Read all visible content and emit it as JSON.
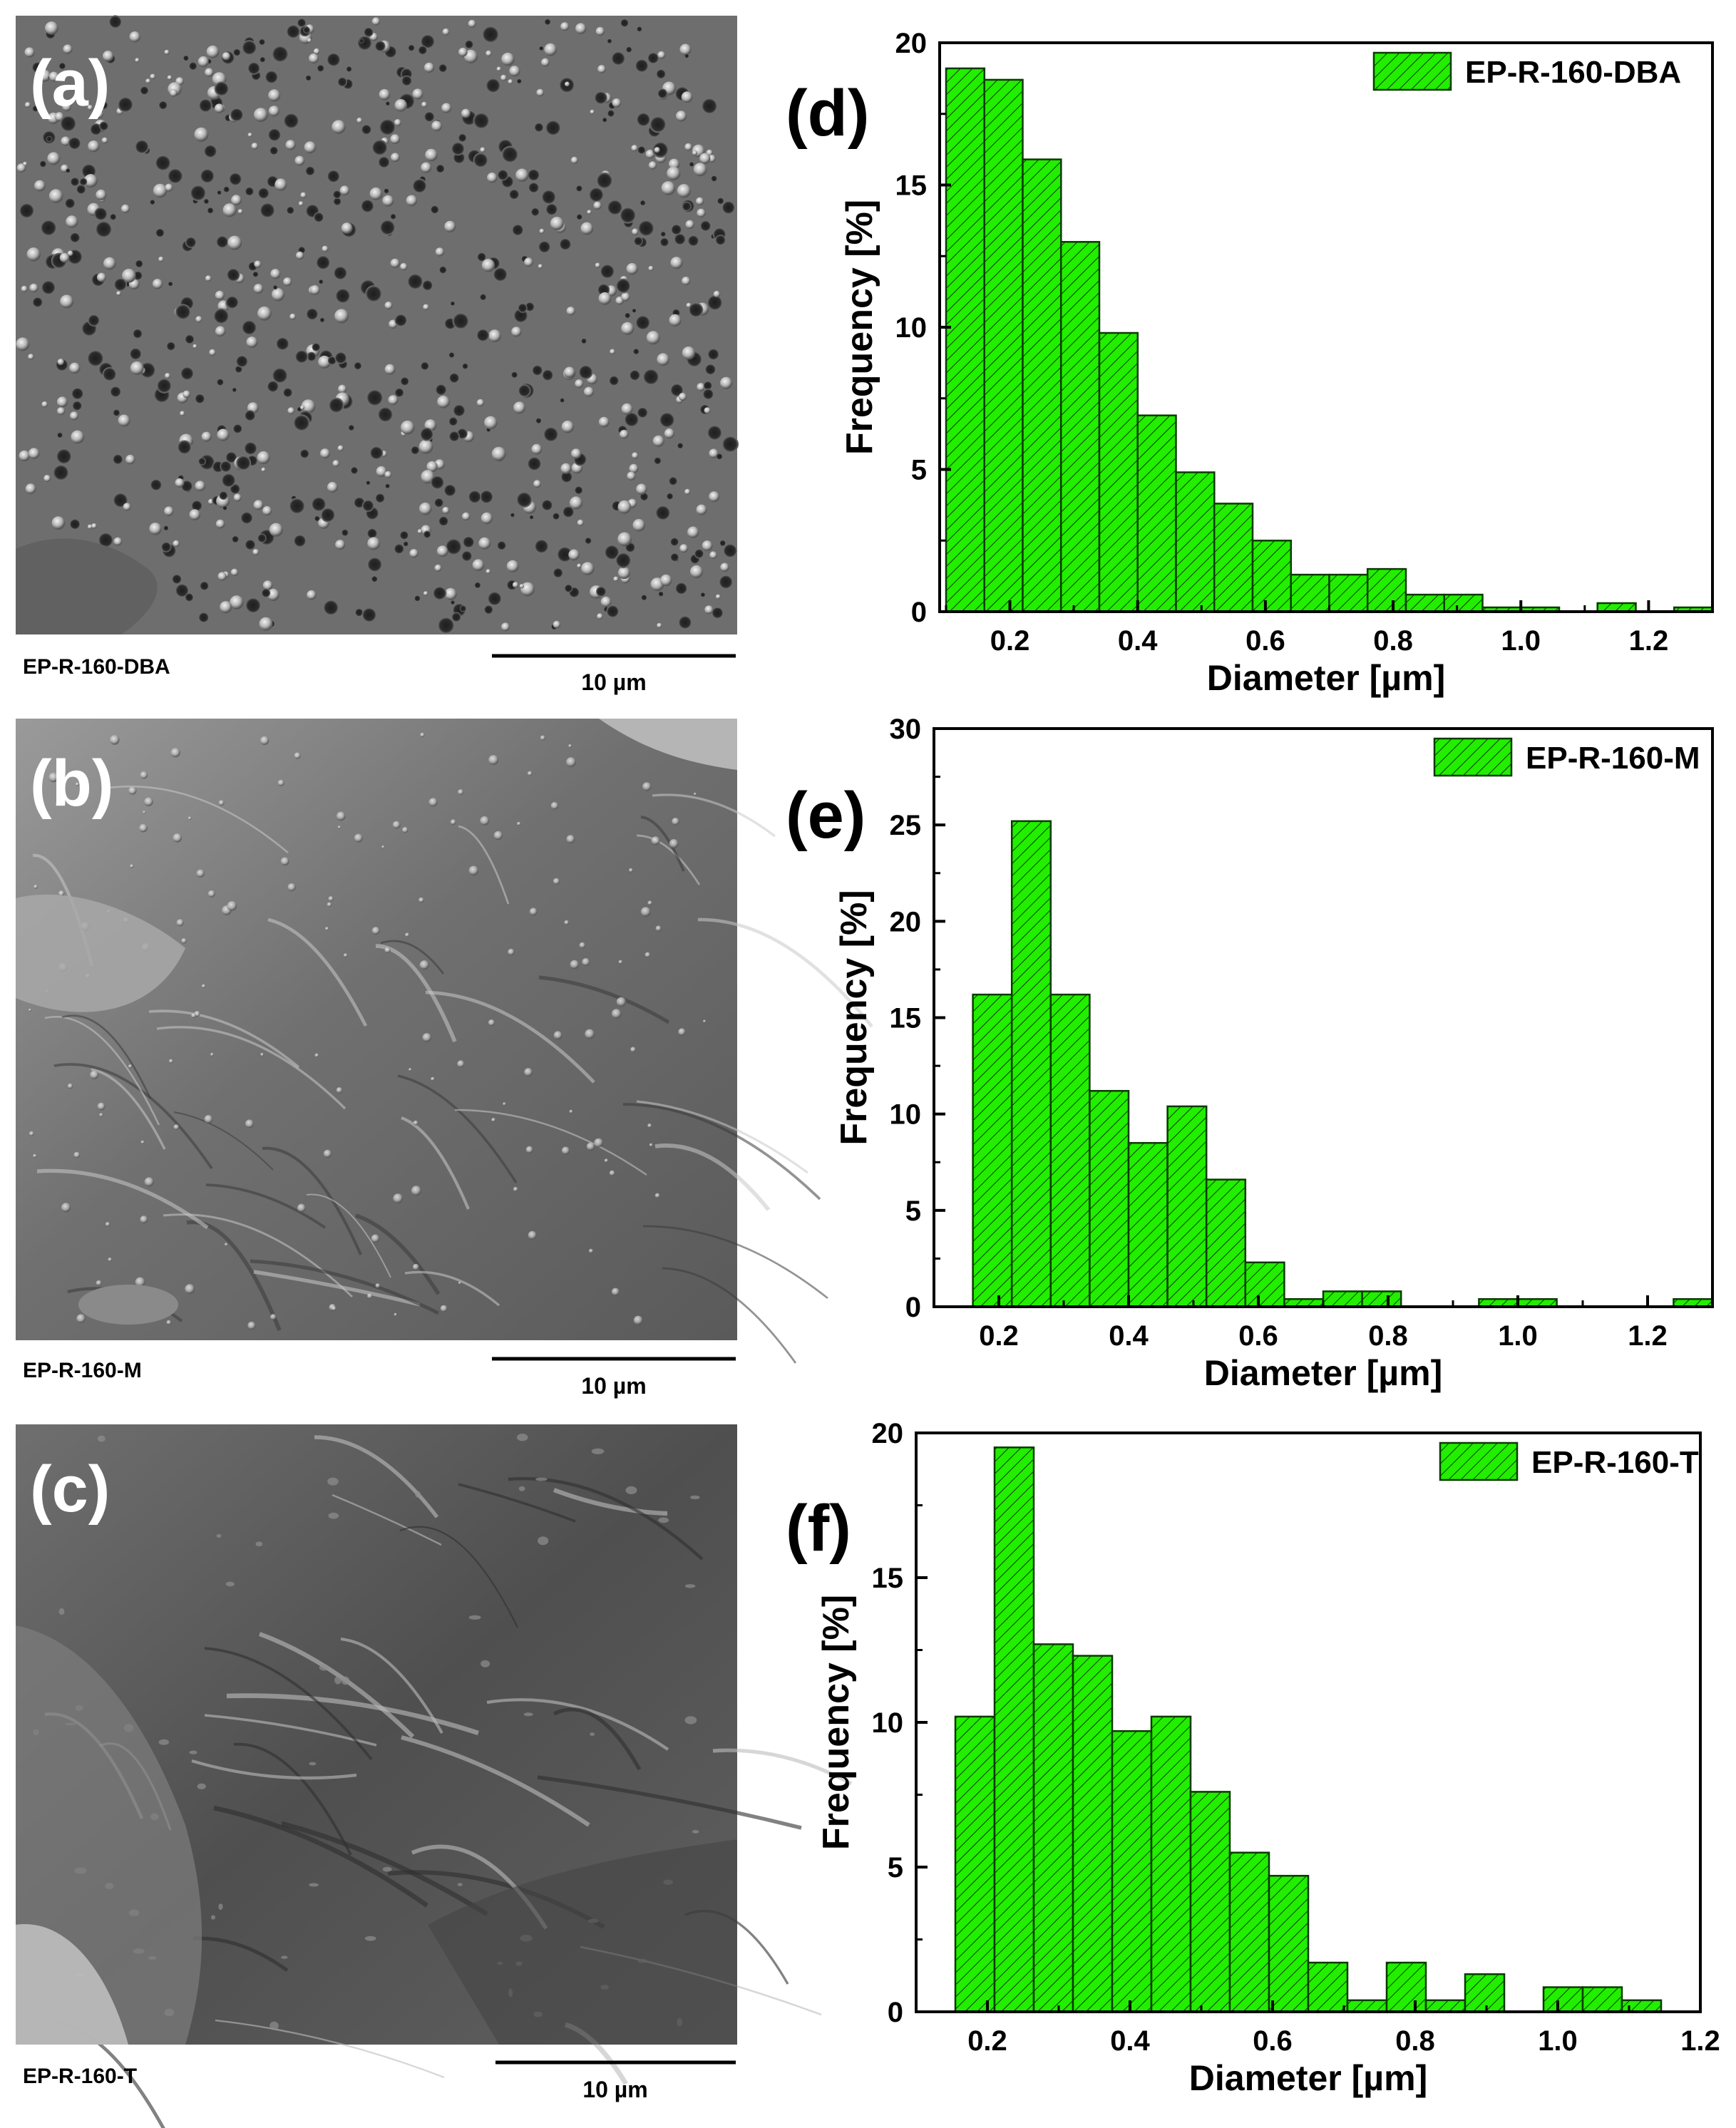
{
  "panels_left": [
    {
      "tag": "(a)",
      "caption": "EP-R-160-DBA",
      "scalebar": "10 µm"
    },
    {
      "tag": "(b)",
      "caption": "EP-R-160-M",
      "scalebar": "10 µm"
    },
    {
      "tag": "(c)",
      "caption": "EP-R-160-T",
      "scalebar": "10 µm"
    }
  ],
  "colors": {
    "bar_fill": "#22ee00",
    "bar_edge": "#0a3a00",
    "axis": "#000000"
  },
  "chart_data": [
    {
      "type": "bar",
      "panel": "(d)",
      "legend": "EP-R-160-DBA",
      "legend_position": "top-right",
      "xlabel": "Diameter [µm]",
      "ylabel": "Frequency [%]",
      "xlim": [
        0.09,
        1.3
      ],
      "ylim": [
        0,
        20
      ],
      "xticks": [
        0.2,
        0.4,
        0.6,
        0.8,
        1.0,
        1.2
      ],
      "xtick_labels": [
        "0.2",
        "0.4",
        "0.6",
        "0.8",
        "1.0",
        "1.2"
      ],
      "yticks": [
        0,
        5,
        10,
        15,
        20
      ],
      "ytick_labels": [
        "0",
        "5",
        "10",
        "15",
        "20"
      ],
      "bin_width": 0.06,
      "bin_start": [
        0.1,
        0.16,
        0.22,
        0.28,
        0.34,
        0.4,
        0.46,
        0.52,
        0.58,
        0.64,
        0.7,
        0.76,
        0.82,
        0.88,
        0.94,
        1.0,
        1.06,
        1.12,
        1.18,
        1.24
      ],
      "values": [
        19.1,
        18.7,
        15.9,
        13.0,
        9.8,
        6.9,
        4.9,
        3.8,
        2.5,
        1.3,
        1.3,
        1.5,
        0.6,
        0.6,
        0.15,
        0.15,
        0.0,
        0.3,
        0.0,
        0.15
      ],
      "grid": false
    },
    {
      "type": "bar",
      "panel": "(e)",
      "legend": "EP-R-160-M",
      "legend_position": "top-right",
      "xlabel": "Diameter [µm]",
      "ylabel": "Frequency [%]",
      "xlim": [
        0.1,
        1.3
      ],
      "ylim": [
        0,
        30
      ],
      "xticks": [
        0.2,
        0.4,
        0.6,
        0.8,
        1.0,
        1.2
      ],
      "xtick_labels": [
        "0.2",
        "0.4",
        "0.6",
        "0.8",
        "1.0",
        "1.2"
      ],
      "yticks": [
        0,
        5,
        10,
        15,
        20,
        25,
        30
      ],
      "ytick_labels": [
        "0",
        "5",
        "10",
        "15",
        "20",
        "25",
        "30"
      ],
      "bin_width": 0.06,
      "bin_start": [
        0.16,
        0.22,
        0.28,
        0.34,
        0.4,
        0.46,
        0.52,
        0.58,
        0.64,
        0.7,
        0.76,
        0.82,
        0.88,
        0.94,
        1.0,
        1.06,
        1.12,
        1.18,
        1.24
      ],
      "values": [
        16.2,
        25.2,
        16.2,
        11.2,
        8.5,
        10.4,
        6.6,
        2.3,
        0.4,
        0.8,
        0.8,
        0.0,
        0.0,
        0.4,
        0.4,
        0.0,
        0.0,
        0.0,
        0.4
      ],
      "grid": false
    },
    {
      "type": "bar",
      "panel": "(f)",
      "legend": "EP-R-160-T",
      "legend_position": "top-right",
      "xlabel": "Diameter [µm]",
      "ylabel": "Frequency [%]",
      "xlim": [
        0.1,
        1.2
      ],
      "ylim": [
        0,
        20
      ],
      "xticks": [
        0.2,
        0.4,
        0.6,
        0.8,
        1.0,
        1.2
      ],
      "xtick_labels": [
        "0.2",
        "0.4",
        "0.6",
        "0.8",
        "1.0",
        "1.2"
      ],
      "yticks": [
        0,
        5,
        10,
        15,
        20
      ],
      "ytick_labels": [
        "0",
        "5",
        "10",
        "15",
        "20"
      ],
      "bin_width": 0.055,
      "bin_start": [
        0.155,
        0.21,
        0.265,
        0.32,
        0.375,
        0.43,
        0.485,
        0.54,
        0.595,
        0.65,
        0.705,
        0.76,
        0.815,
        0.87,
        0.925,
        0.98,
        1.035,
        1.09
      ],
      "values": [
        10.2,
        19.5,
        12.7,
        12.3,
        9.7,
        10.2,
        7.6,
        5.5,
        4.7,
        1.7,
        0.4,
        1.7,
        0.4,
        1.3,
        0.0,
        0.85,
        0.85,
        0.4
      ],
      "grid": false
    }
  ]
}
